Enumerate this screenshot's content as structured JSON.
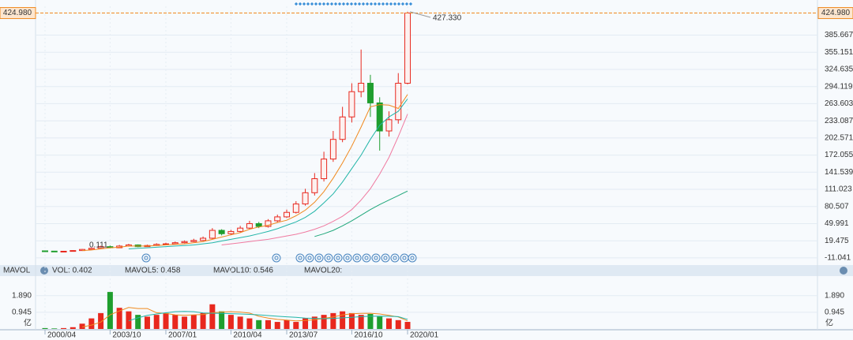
{
  "chart_data": {
    "type": "candlestick",
    "categories": [
      "2000/04",
      null,
      null,
      null,
      null,
      null,
      null,
      "2003/10",
      null,
      null,
      null,
      null,
      null,
      "2007/01",
      null,
      null,
      null,
      null,
      null,
      null,
      "2010/04",
      null,
      null,
      null,
      null,
      null,
      "2013/07",
      null,
      null,
      null,
      null,
      null,
      null,
      "2016/10",
      null,
      null,
      null,
      null,
      null,
      "2020/01"
    ],
    "open": [
      1.5,
      1,
      0.5,
      0.8,
      2,
      4,
      6,
      9,
      7,
      10,
      12,
      9,
      11,
      13,
      14,
      16,
      18,
      20,
      24,
      38,
      32,
      36,
      42,
      50,
      45,
      55,
      62,
      70,
      85,
      105,
      130,
      165,
      200,
      240,
      285,
      300,
      265,
      215,
      235,
      300
    ],
    "high": [
      2.2,
      1.4,
      1.2,
      2.6,
      4.8,
      7,
      10.5,
      11,
      12,
      14,
      13,
      12.5,
      15,
      16,
      18,
      20,
      23,
      27,
      42,
      40,
      39,
      46,
      55,
      53,
      58,
      66,
      75,
      90,
      112,
      140,
      178,
      215,
      258,
      300,
      360,
      315,
      275,
      250,
      318,
      427.33
    ],
    "low": [
      0.6,
      0.111,
      0.3,
      0.6,
      1.6,
      3.5,
      5.5,
      6,
      6.5,
      9,
      8,
      8.5,
      10,
      12,
      13,
      15,
      17,
      19,
      22,
      29,
      30,
      34,
      40,
      42,
      43,
      52,
      60,
      68,
      82,
      100,
      125,
      160,
      195,
      230,
      275,
      240,
      180,
      205,
      228,
      298
    ],
    "close": [
      1,
      0.5,
      0.8,
      2,
      4,
      6,
      9,
      7,
      10,
      12,
      9,
      11,
      13,
      14,
      16,
      18,
      20,
      24,
      38,
      32,
      36,
      42,
      50,
      45,
      55,
      62,
      70,
      85,
      105,
      130,
      165,
      200,
      240,
      285,
      300,
      265,
      215,
      235,
      300,
      424.98
    ],
    "up_color": "#e8281e",
    "down_color": "#1f9e2e",
    "ma_lines": [
      {
        "color": "#f0891e",
        "values": [
          null,
          null,
          null,
          null,
          2,
          3,
          5,
          7,
          8,
          10,
          10,
          10,
          11,
          12,
          13,
          14,
          16,
          18,
          22,
          26,
          30,
          34,
          40,
          44,
          47,
          52,
          56,
          64,
          74,
          88,
          107,
          131,
          158,
          188,
          222,
          258,
          262,
          261,
          255,
          280
        ]
      },
      {
        "color": "#22b5a8",
        "values": [
          null,
          null,
          null,
          null,
          null,
          null,
          null,
          null,
          null,
          5,
          6,
          7,
          8,
          9,
          10,
          11,
          12,
          14,
          16,
          19,
          22,
          25,
          28,
          32,
          36,
          41,
          47,
          53,
          61,
          72,
          87,
          103,
          124,
          148,
          172,
          200,
          225,
          240,
          250,
          272
        ]
      },
      {
        "color": "#f07aa0",
        "values": [
          null,
          null,
          null,
          null,
          null,
          null,
          null,
          null,
          null,
          null,
          null,
          null,
          null,
          null,
          null,
          null,
          null,
          null,
          null,
          12,
          14,
          16,
          18,
          20,
          22,
          25,
          28,
          31,
          35,
          40,
          46,
          54,
          63,
          75,
          92,
          112,
          138,
          168,
          205,
          245
        ]
      },
      {
        "color": "#1fa77a",
        "values": [
          null,
          null,
          null,
          null,
          null,
          null,
          null,
          null,
          null,
          null,
          null,
          null,
          null,
          null,
          null,
          null,
          null,
          null,
          null,
          null,
          null,
          null,
          null,
          null,
          null,
          null,
          null,
          null,
          null,
          27,
          32,
          38,
          46,
          55,
          65,
          75,
          84,
          92,
          100,
          108
        ]
      }
    ],
    "ylim": [
      -21,
      437
    ],
    "yticks": [
      -11.041,
      19.475,
      49.991,
      80.507,
      111.023,
      141.539,
      172.055,
      202.571,
      233.087,
      263.603,
      294.119,
      324.635,
      355.151,
      385.667
    ],
    "grid": true,
    "last_price": {
      "value": 424.98,
      "label": "424.980",
      "color": "#f0891e"
    },
    "annotations": [
      {
        "value": 427.33,
        "label": "427.330"
      },
      {
        "value": 0.111,
        "label": "0.111"
      }
    ],
    "volume": {
      "title": "MAVOL",
      "indicators": [
        {
          "label": "VOL: 0.402",
          "color": "#e8281e"
        },
        {
          "label": "MAVOL5: 0.458",
          "color": "#f0891e"
        },
        {
          "label": "MAVOL10: 0.546",
          "color": "#22b5a8"
        },
        {
          "label": "MAVOL20:",
          "color": "#f0a8c4"
        }
      ],
      "values": [
        0.05,
        0.03,
        0.05,
        0.1,
        0.3,
        0.6,
        0.9,
        2.1,
        1.2,
        1.0,
        0.8,
        0.7,
        0.8,
        0.9,
        0.8,
        0.7,
        0.8,
        0.9,
        1.4,
        1.0,
        0.8,
        0.7,
        0.6,
        0.5,
        0.5,
        0.4,
        0.5,
        0.4,
        0.6,
        0.7,
        0.8,
        0.9,
        1.0,
        0.9,
        0.8,
        0.85,
        0.7,
        0.6,
        0.5,
        0.402
      ],
      "ma_lines": [
        {
          "color": "#f0891e",
          "values": [
            null,
            null,
            null,
            null,
            0.11,
            0.22,
            0.39,
            0.8,
            1.02,
            1.22,
            1.16,
            1.16,
            0.92,
            0.88,
            0.8,
            0.78,
            0.8,
            0.82,
            0.92,
            0.96,
            0.98,
            0.96,
            0.9,
            0.72,
            0.62,
            0.54,
            0.5,
            0.46,
            0.48,
            0.52,
            0.6,
            0.68,
            0.8,
            0.86,
            0.88,
            0.89,
            0.85,
            0.77,
            0.68,
            0.458
          ]
        },
        {
          "color": "#22b5a8",
          "values": [
            null,
            null,
            null,
            null,
            null,
            null,
            null,
            null,
            null,
            0.46,
            0.63,
            0.77,
            0.85,
            0.92,
            0.98,
            1.0,
            0.98,
            0.91,
            0.89,
            0.88,
            0.87,
            0.85,
            0.83,
            0.8,
            0.76,
            0.72,
            0.69,
            0.66,
            0.62,
            0.6,
            0.58,
            0.6,
            0.63,
            0.66,
            0.7,
            0.72,
            0.73,
            0.72,
            0.7,
            0.546
          ]
        }
      ],
      "ylim": [
        0,
        3.0
      ],
      "yticks": [
        0.945,
        {
          "value": 1.89,
          "label": "1.890"
        }
      ],
      "unit": "亿"
    }
  }
}
